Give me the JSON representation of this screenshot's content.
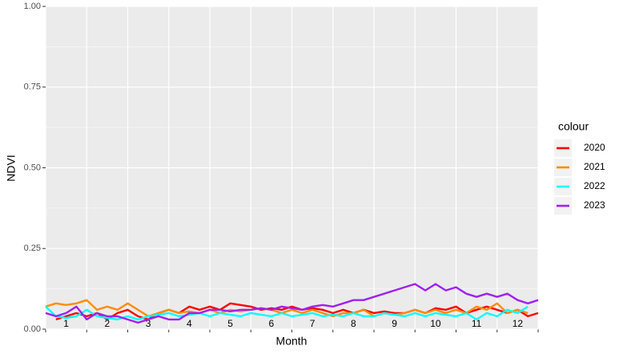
{
  "chart_data": {
    "type": "line",
    "xlabel": "Month",
    "ylabel": "NDVI",
    "legend_title": "colour",
    "legend": "right",
    "grid": true,
    "x": [
      0.5,
      0.75,
      1,
      1.25,
      1.5,
      1.75,
      2,
      2.25,
      2.5,
      2.75,
      3,
      3.25,
      3.5,
      3.75,
      4,
      4.25,
      4.5,
      4.75,
      5,
      5.25,
      5.5,
      5.75,
      6,
      6.25,
      6.5,
      6.75,
      7,
      7.25,
      7.5,
      7.75,
      8,
      8.25,
      8.5,
      8.75,
      9,
      9.25,
      9.5,
      9.75,
      10,
      10.25,
      10.5,
      10.75,
      11,
      11.25,
      11.5,
      11.75,
      12,
      12.25,
      12.5
    ],
    "xlim": [
      0.5,
      12.5
    ],
    "xticks": [
      {
        "value": 1,
        "label": "1"
      },
      {
        "value": 2,
        "label": "2"
      },
      {
        "value": 3,
        "label": "3"
      },
      {
        "value": 4,
        "label": "4"
      },
      {
        "value": 5,
        "label": "5"
      },
      {
        "value": 6,
        "label": "6"
      },
      {
        "value": 7,
        "label": "7"
      },
      {
        "value": 8,
        "label": "8"
      },
      {
        "value": 9,
        "label": "9"
      },
      {
        "value": 10,
        "label": "10"
      },
      {
        "value": 11,
        "label": "11"
      },
      {
        "value": 12,
        "label": "12"
      }
    ],
    "xgrid": [
      0.5,
      1.5,
      2.5,
      3.5,
      4.5,
      5.5,
      6.5,
      7.5,
      8.5,
      9.5,
      10.5,
      11.5,
      12.5
    ],
    "ylim": [
      0,
      1
    ],
    "yticks": [
      {
        "value": 0,
        "label": "0.00"
      },
      {
        "value": 0.25,
        "label": "0.25"
      },
      {
        "value": 0.5,
        "label": "0.50"
      },
      {
        "value": 0.75,
        "label": "0.75"
      },
      {
        "value": 1,
        "label": "1.00"
      }
    ],
    "yminor": [
      0.125,
      0.375,
      0.625,
      0.875
    ],
    "series": [
      {
        "name": "2020",
        "color": "#ff0000",
        "values": [
          null,
          0.03,
          0.04,
          0.05,
          0.04,
          0.05,
          0.03,
          0.05,
          0.06,
          0.04,
          0.03,
          0.05,
          0.06,
          0.05,
          0.07,
          0.06,
          0.07,
          0.06,
          0.08,
          0.075,
          0.07,
          0.06,
          0.065,
          0.06,
          0.07,
          0.06,
          0.065,
          0.06,
          0.05,
          0.06,
          0.05,
          0.06,
          0.05,
          0.055,
          0.05,
          0.05,
          0.06,
          0.05,
          0.065,
          0.06,
          0.07,
          0.05,
          0.06,
          0.07,
          0.06,
          0.05,
          0.06,
          0.04,
          0.05
        ]
      },
      {
        "name": "2021",
        "color": "#ff8c00",
        "values": [
          0.07,
          0.08,
          0.075,
          0.08,
          0.09,
          0.06,
          0.07,
          0.06,
          0.08,
          0.06,
          0.04,
          0.05,
          0.06,
          0.05,
          0.055,
          0.05,
          0.06,
          0.05,
          0.06,
          0.055,
          0.06,
          0.065,
          0.06,
          0.05,
          0.06,
          0.05,
          0.06,
          0.05,
          0.04,
          0.05,
          0.05,
          0.06,
          0.04,
          0.05,
          0.045,
          0.05,
          0.06,
          0.05,
          0.06,
          0.05,
          0.06,
          0.05,
          0.07,
          0.06,
          0.08,
          0.05,
          0.06,
          0.05,
          null
        ]
      },
      {
        "name": "2022",
        "color": "#00ffff",
        "values": [
          0.07,
          0.04,
          0.035,
          0.04,
          0.06,
          0.04,
          0.035,
          0.03,
          0.04,
          0.03,
          0.04,
          0.045,
          0.05,
          0.04,
          0.045,
          0.05,
          0.04,
          0.05,
          0.045,
          0.04,
          0.05,
          0.045,
          0.04,
          0.05,
          0.04,
          0.045,
          0.05,
          0.04,
          0.045,
          0.04,
          0.05,
          0.04,
          0.04,
          0.05,
          0.045,
          0.04,
          0.05,
          0.04,
          0.05,
          0.045,
          0.04,
          0.05,
          0.03,
          0.05,
          0.04,
          0.06,
          0.05,
          0.07,
          null
        ]
      },
      {
        "name": "2023",
        "color": "#a020f0",
        "values": [
          0.05,
          0.04,
          0.05,
          0.07,
          0.03,
          0.05,
          0.04,
          0.04,
          0.03,
          0.02,
          0.03,
          0.04,
          0.03,
          0.03,
          0.05,
          0.05,
          0.06,
          0.06,
          0.055,
          0.06,
          0.06,
          0.065,
          0.06,
          0.07,
          0.065,
          0.06,
          0.07,
          0.075,
          0.07,
          0.08,
          0.09,
          0.09,
          0.1,
          0.11,
          0.12,
          0.13,
          0.14,
          0.12,
          0.14,
          0.12,
          0.13,
          0.11,
          0.1,
          0.11,
          0.1,
          0.11,
          0.09,
          0.08,
          0.09
        ]
      }
    ]
  }
}
